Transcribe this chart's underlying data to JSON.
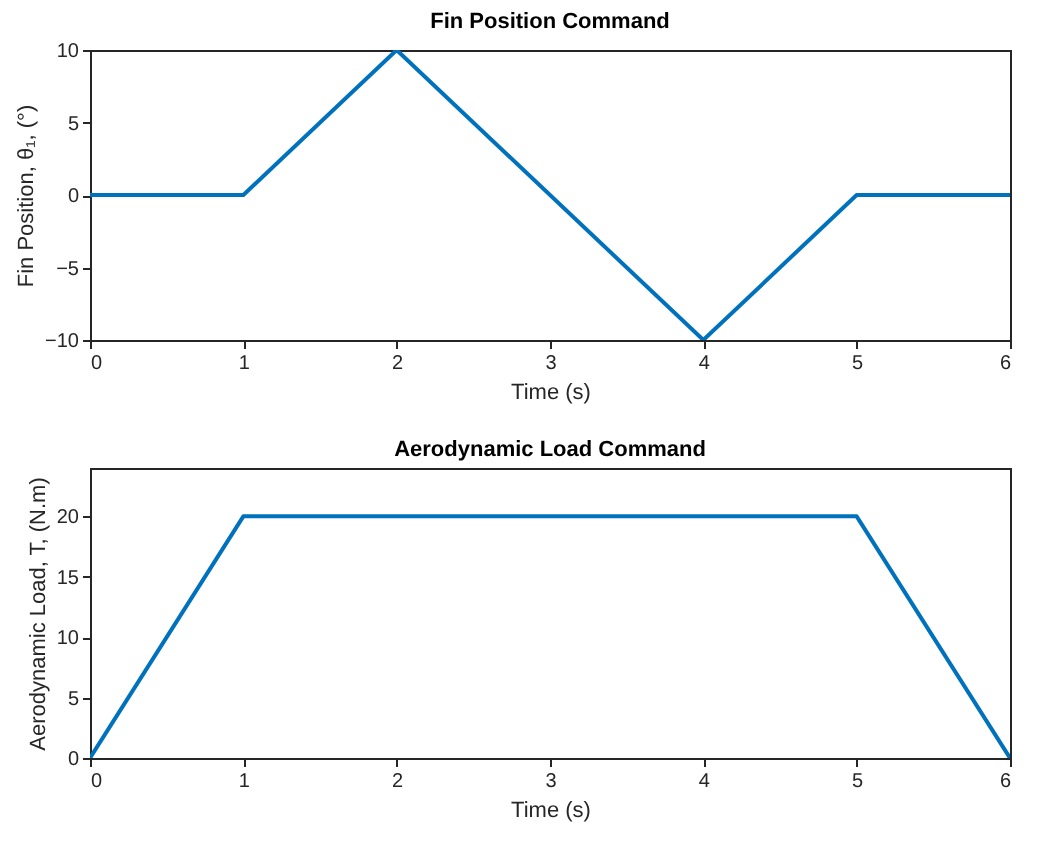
{
  "chart_data": [
    {
      "type": "line",
      "title": "Fin Position Command",
      "xlabel": "Time (s)",
      "ylabel": "Fin Position, θ₁, (°)",
      "x": [
        0,
        1,
        2,
        4,
        5,
        6
      ],
      "series": [
        {
          "color": "#0072bd",
          "values": [
            0,
            0,
            10,
            -10,
            0,
            0
          ]
        }
      ],
      "xlim": [
        0,
        6
      ],
      "xticks": [
        0,
        1,
        2,
        3,
        4,
        5,
        6
      ],
      "ylim": [
        -10,
        10
      ],
      "yticks": [
        -10,
        -5,
        0,
        5,
        10
      ],
      "grid": false
    },
    {
      "type": "line",
      "title": "Aerodynamic Load Command",
      "xlabel": "Time (s)",
      "ylabel": "Aerodynamic Load, T, (N.m)",
      "x": [
        0,
        1,
        5,
        6
      ],
      "series": [
        {
          "color": "#0072bd",
          "values": [
            0,
            20,
            20,
            0
          ]
        }
      ],
      "xlim": [
        0,
        6
      ],
      "xticks": [
        0,
        1,
        2,
        3,
        4,
        5,
        6
      ],
      "ylim": [
        0,
        24
      ],
      "yticks": [
        0,
        5,
        10,
        15,
        20
      ],
      "grid": false
    }
  ]
}
